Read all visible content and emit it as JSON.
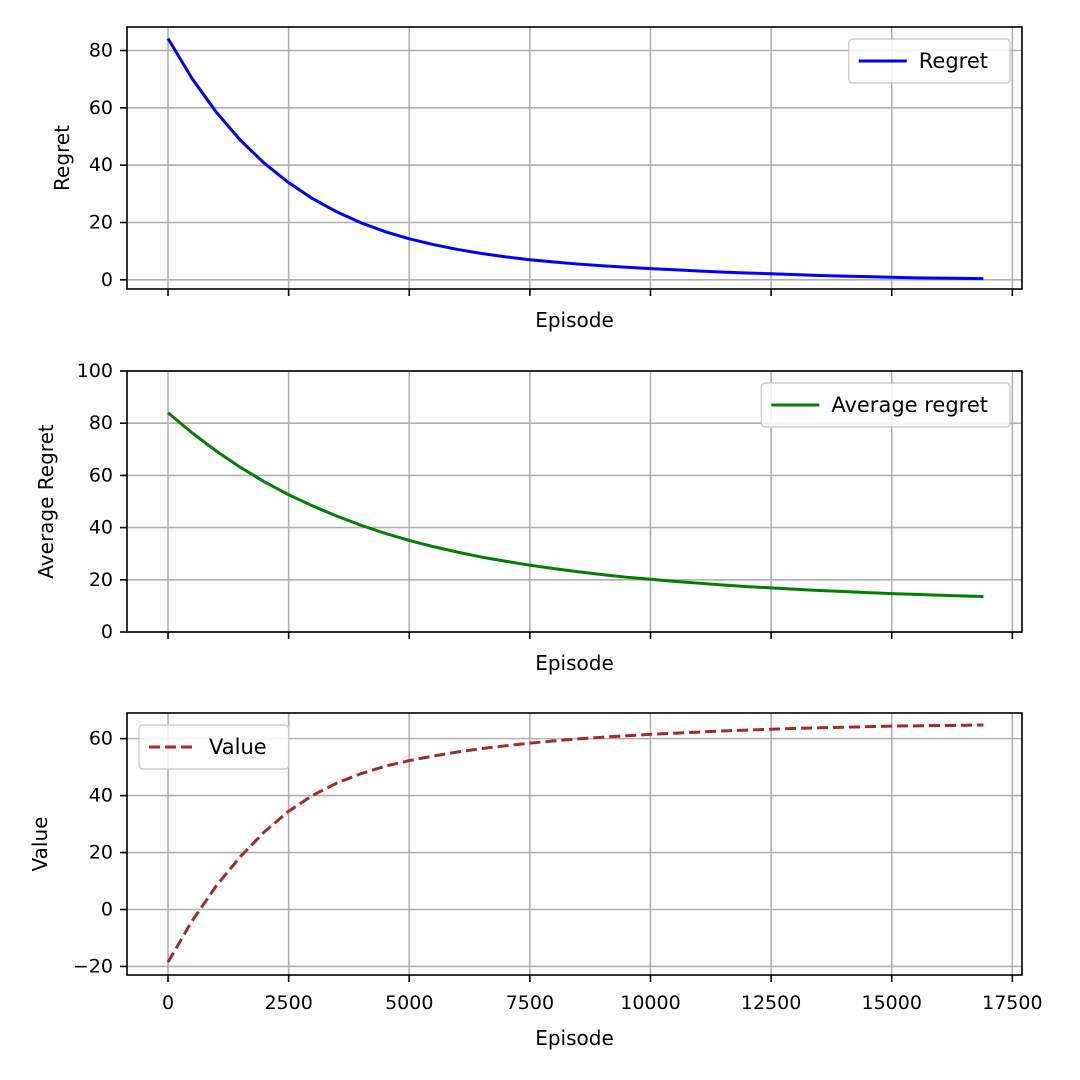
{
  "figure": {
    "background": "#ffffff",
    "grid_color": "#b0b0b0"
  },
  "chart_data": [
    {
      "type": "line",
      "xlabel": "Episode",
      "ylabel": "Regret",
      "xlim": [
        -850,
        17700
      ],
      "ylim": [
        -3.2,
        88.2
      ],
      "x_ticks": [
        0,
        2500,
        5000,
        7500,
        10000,
        12500,
        15000,
        17500
      ],
      "x_tick_labels_visible": false,
      "y_ticks": [
        0,
        20,
        40,
        60,
        80
      ],
      "y_tick_labels": [
        "0",
        "20",
        "40",
        "60",
        "80"
      ],
      "grid": true,
      "legend": "top-right",
      "series": [
        {
          "name": "Regret",
          "color": "#0000ff",
          "style": "solid",
          "x": [
            0,
            500,
            1000,
            1500,
            2000,
            2500,
            3000,
            3500,
            4000,
            4500,
            5000,
            5500,
            6000,
            6500,
            7000,
            7500,
            8000,
            8500,
            9000,
            9500,
            10000,
            10500,
            11000,
            11500,
            12000,
            12500,
            13000,
            13500,
            14000,
            14500,
            15000,
            15500,
            16000,
            16500,
            16900
          ],
          "values": [
            84.2,
            70.2,
            58.5,
            48.7,
            40.6,
            33.9,
            28.3,
            23.7,
            19.9,
            16.8,
            14.3,
            12.3,
            10.6,
            9.2,
            8.0,
            7.0,
            6.2,
            5.5,
            4.9,
            4.4,
            3.9,
            3.5,
            3.1,
            2.7,
            2.4,
            2.1,
            1.8,
            1.5,
            1.3,
            1.1,
            0.9,
            0.7,
            0.6,
            0.5,
            0.4
          ]
        }
      ]
    },
    {
      "type": "line",
      "xlabel": "Episode",
      "ylabel": "Average Regret",
      "xlim": [
        -850,
        17700
      ],
      "ylim": [
        0,
        100
      ],
      "x_ticks": [
        0,
        2500,
        5000,
        7500,
        10000,
        12500,
        15000,
        17500
      ],
      "x_tick_labels_visible": false,
      "y_ticks": [
        0,
        20,
        40,
        60,
        80,
        100
      ],
      "y_tick_labels": [
        "0",
        "20",
        "40",
        "60",
        "80",
        "100"
      ],
      "grid": true,
      "legend": "top-right",
      "series": [
        {
          "name": "Average regret",
          "color": "#008000",
          "style": "solid",
          "x": [
            0,
            500,
            1000,
            1500,
            2000,
            2500,
            3000,
            3500,
            4000,
            4500,
            5000,
            5500,
            6000,
            6500,
            7000,
            7500,
            8000,
            8500,
            9000,
            9500,
            10000,
            10500,
            11000,
            11500,
            12000,
            12500,
            13000,
            13500,
            14000,
            14500,
            15000,
            15500,
            16000,
            16500,
            16900
          ],
          "values": [
            84.0,
            76.3,
            69.3,
            63.1,
            57.5,
            52.6,
            48.3,
            44.4,
            40.9,
            37.8,
            35.1,
            32.7,
            30.6,
            28.7,
            27.1,
            25.6,
            24.3,
            23.1,
            22.0,
            21.0,
            20.2,
            19.4,
            18.7,
            18.0,
            17.4,
            16.9,
            16.4,
            15.9,
            15.5,
            15.1,
            14.7,
            14.4,
            14.1,
            13.8,
            13.6
          ]
        }
      ]
    },
    {
      "type": "line",
      "xlabel": "Episode",
      "ylabel": "Value",
      "xlim": [
        -850,
        17700
      ],
      "ylim": [
        -23.0,
        69.0
      ],
      "x_ticks": [
        0,
        2500,
        5000,
        7500,
        10000,
        12500,
        15000,
        17500
      ],
      "x_tick_labels_visible": true,
      "x_tick_labels": [
        "0",
        "2500",
        "5000",
        "7500",
        "10000",
        "12500",
        "15000",
        "17500"
      ],
      "y_ticks": [
        -20,
        0,
        20,
        40,
        60
      ],
      "y_tick_labels": [
        "−20",
        "0",
        "20",
        "40",
        "60"
      ],
      "grid": true,
      "legend": "top-left",
      "series": [
        {
          "name": "Value",
          "color": "#a52a2a",
          "style": "dashed",
          "x": [
            0,
            500,
            1000,
            1500,
            2000,
            2500,
            3000,
            3500,
            4000,
            4500,
            5000,
            5500,
            6000,
            6500,
            7000,
            7500,
            8000,
            8500,
            9000,
            9500,
            10000,
            10500,
            11000,
            11500,
            12000,
            12500,
            13000,
            13500,
            14000,
            14500,
            15000,
            15500,
            16000,
            16500,
            16900
          ],
          "values": [
            -18.5,
            -4.0,
            8.3,
            18.6,
            27.3,
            34.5,
            40.1,
            44.4,
            47.7,
            50.3,
            52.3,
            53.9,
            55.3,
            56.5,
            57.5,
            58.4,
            59.2,
            59.9,
            60.5,
            61.0,
            61.5,
            61.9,
            62.3,
            62.7,
            63.0,
            63.3,
            63.6,
            63.8,
            64.0,
            64.2,
            64.4,
            64.5,
            64.6,
            64.7,
            64.8
          ]
        }
      ]
    }
  ]
}
